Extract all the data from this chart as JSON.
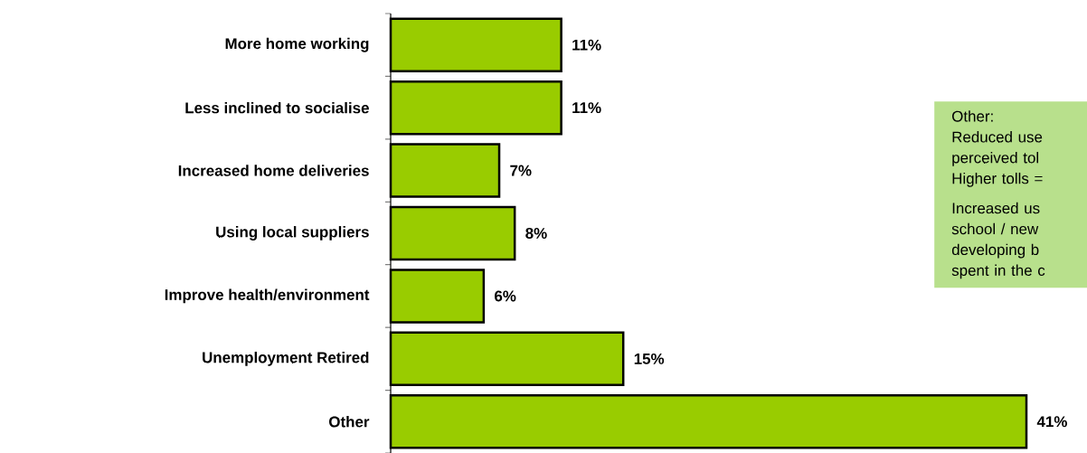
{
  "chart_data": {
    "type": "bar",
    "orientation": "horizontal",
    "categories": [
      "More home working",
      "Less inclined to socialise",
      "Increased home deliveries",
      "Using local suppliers",
      "Improve health/environment",
      "Unemployment Retired",
      "Other"
    ],
    "values": [
      11,
      11,
      7,
      8,
      6,
      15,
      41
    ],
    "value_labels": [
      "11%",
      "11%",
      "7%",
      "8%",
      "6%",
      "15%",
      "41%"
    ],
    "color": "#99cc00",
    "annotations": [
      "Other:",
      "Reduced use",
      "perceived tol",
      "Higher tolls =",
      "Increased us",
      "school / new",
      "developing b",
      "spent in the c"
    ]
  }
}
